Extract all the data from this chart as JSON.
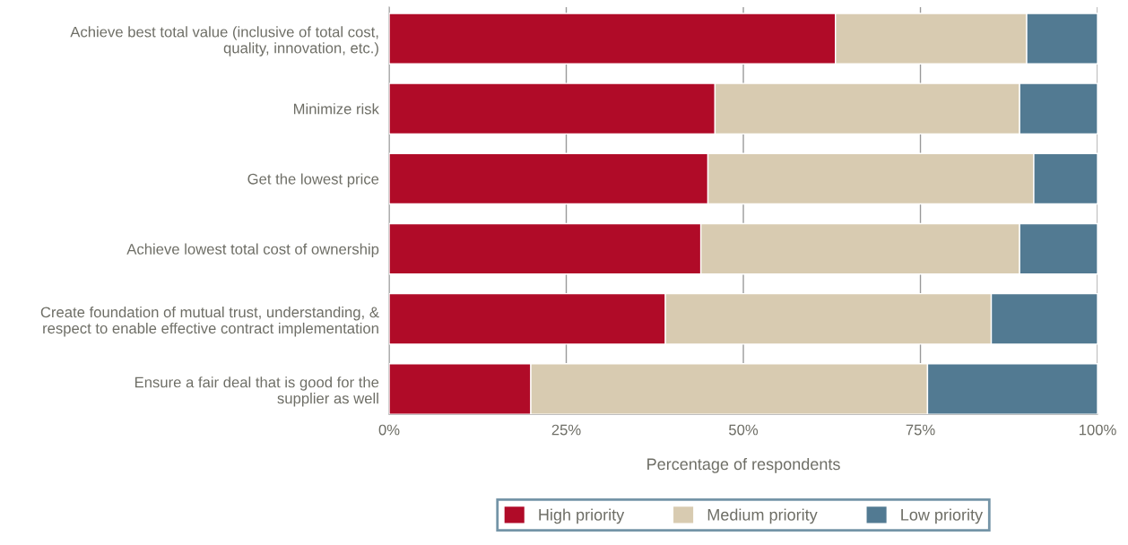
{
  "chart_data": {
    "type": "bar",
    "orientation": "horizontal",
    "stacked": true,
    "categories": [
      "Achieve best total value (inclusive of total cost,\nquality, innovation, etc.)",
      "Minimize risk",
      "Get the lowest price",
      "Achieve lowest total cost of ownership",
      "Create foundation of mutual trust, understanding, &\nrespect to enable effective contract implementation",
      "Ensure a fair deal that is good for the\nsupplier as well"
    ],
    "series": [
      {
        "name": "High priority",
        "color": "#b00b28",
        "values": [
          63,
          46,
          45,
          44,
          39,
          20
        ]
      },
      {
        "name": "Medium priority",
        "color": "#d8cbb1",
        "values": [
          27,
          43,
          46,
          45,
          46,
          56
        ]
      },
      {
        "name": "Low priority",
        "color": "#527a92",
        "values": [
          10,
          11,
          9,
          11,
          15,
          24
        ]
      }
    ],
    "xlabel": "Percentage of respondents",
    "xlim": [
      0,
      100
    ],
    "xticks": [
      {
        "value": 0,
        "label": "0%"
      },
      {
        "value": 25,
        "label": "25%"
      },
      {
        "value": 50,
        "label": "50%"
      },
      {
        "value": 75,
        "label": "75%"
      },
      {
        "value": 100,
        "label": "100%"
      }
    ],
    "grid": "x",
    "legend": "bottom"
  }
}
